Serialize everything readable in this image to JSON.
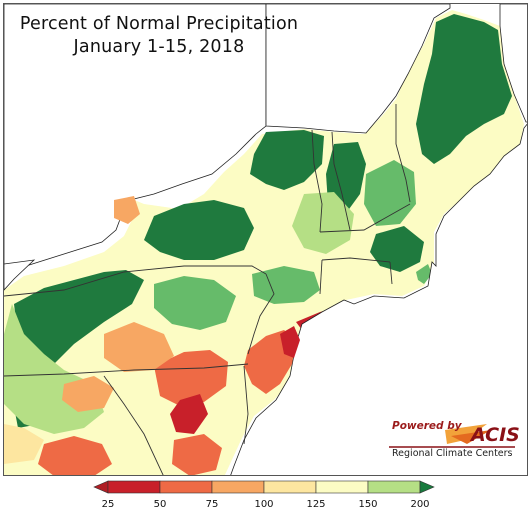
{
  "title": {
    "line1": "Percent of Normal Precipitation",
    "line2": "January 1-15, 2018"
  },
  "logo": {
    "powered_by": "Powered by",
    "brand": "ACIS",
    "subtitle": "Regional Climate Centers"
  },
  "legend": {
    "ticks": [
      "25",
      "50",
      "75",
      "100",
      "125",
      "150",
      "200"
    ],
    "colors": [
      "#c8202a",
      "#ee6a45",
      "#f7a763",
      "#fde6a0",
      "#fcfcc4",
      "#b5df85",
      "#3aa55b"
    ],
    "arrow_low_color": "#b01e25",
    "arrow_high_color": "#187a3d"
  },
  "map_colors": {
    "very_dry": "#c8202a",
    "dry": "#ee6a45",
    "below": "#f7a763",
    "near_below": "#fde6a0",
    "near_above": "#fcfcc4",
    "above": "#b5df85",
    "wet": "#66bb6a",
    "very_wet": "#1f7a3e",
    "water": "#ffffff"
  }
}
